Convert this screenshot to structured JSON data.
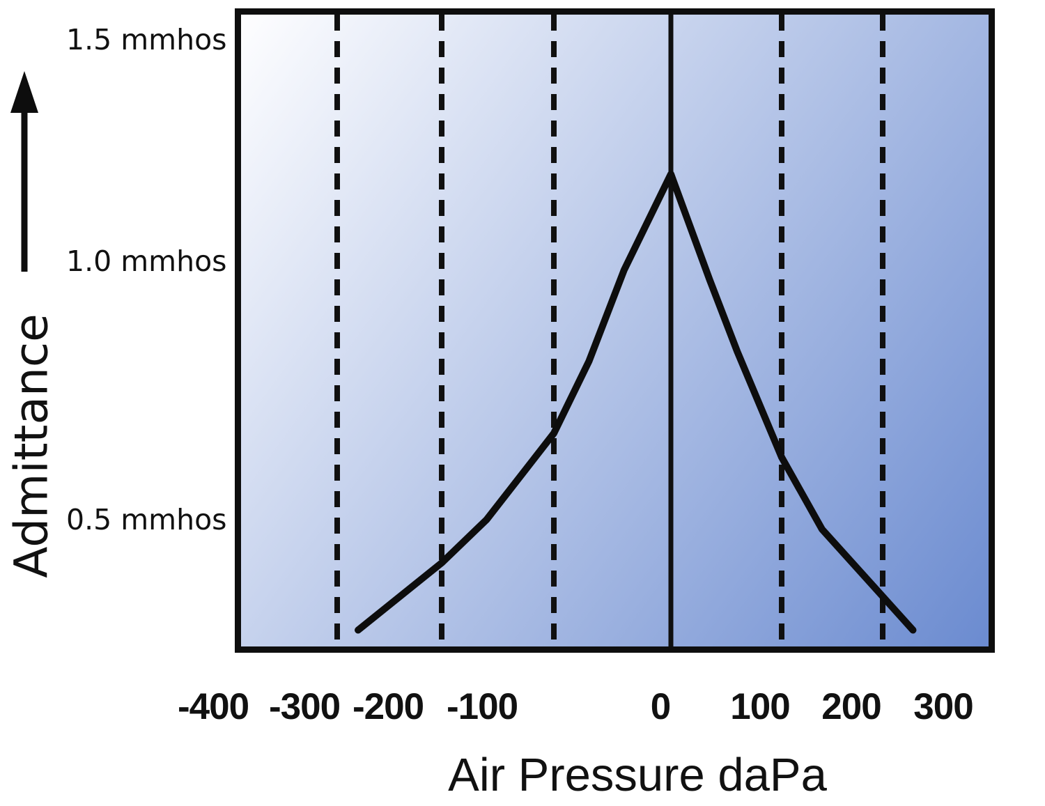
{
  "chart_data": {
    "type": "line",
    "title": "",
    "xlabel": "Air Pressure daPa",
    "ylabel": "Admittance",
    "y_unit": "mmhos",
    "x_ticks": [
      "-400",
      "-300",
      "-200",
      "-100",
      "0",
      "100",
      "200",
      "300"
    ],
    "x_tick_values": [
      -400,
      -300,
      -200,
      -100,
      0,
      100,
      200,
      300
    ],
    "y_tick_labels": [
      "1.5 mmhos",
      "1.0 mmhos",
      "0.5 mmhos"
    ],
    "y_tick_values": [
      1.5,
      1.0,
      0.5
    ],
    "x_range": [
      -400,
      300
    ],
    "y_range": [
      0.2,
      1.55
    ],
    "grid": {
      "dashed_at": [
        -300,
        -200,
        -100,
        100,
        200
      ],
      "solid_at": 0
    },
    "legend": "none",
    "series": [
      {
        "name": "admittance-curve",
        "points": [
          [
            -280,
            0.27
          ],
          [
            -200,
            0.41
          ],
          [
            -160,
            0.5
          ],
          [
            -100,
            0.68
          ],
          [
            -70,
            0.83
          ],
          [
            -40,
            1.02
          ],
          [
            0,
            1.22
          ],
          [
            35,
            1.0
          ],
          [
            60,
            0.85
          ],
          [
            100,
            0.63
          ],
          [
            140,
            0.48
          ],
          [
            200,
            0.34
          ],
          [
            230,
            0.27
          ]
        ]
      }
    ],
    "peak": {
      "x_daPa": 0,
      "y_mmhos": 1.22
    },
    "colors": {
      "curve": "#0d0d0d",
      "gridline": "#101010",
      "plot_border": "#0e0e0e",
      "gradient_start": "#fefeff",
      "gradient_end": "#6b8bd0",
      "text": "#111111"
    }
  }
}
